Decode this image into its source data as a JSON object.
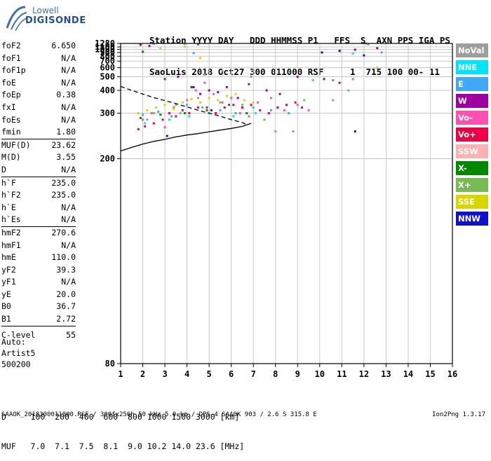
{
  "logo": {
    "line1": "Lowell",
    "line2": "DIGISONDE"
  },
  "header": {
    "line1": "Station YYYY DAY   DDD HHMMSS P1   FFS  S  AXN PPS IGA PS",
    "line2": "SaoLuis 2018 Oct27 300 011000 RSF     1  715 100 00- 11"
  },
  "params": [
    {
      "label": "foF2",
      "value": "6.650"
    },
    {
      "label": "foF1",
      "value": "N/A"
    },
    {
      "label": "foF1p",
      "value": "N/A"
    },
    {
      "label": "foE",
      "value": "N/A"
    },
    {
      "label": "foEp",
      "value": "0.38"
    },
    {
      "label": "fxI",
      "value": "N/A"
    },
    {
      "label": "foEs",
      "value": "N/A"
    },
    {
      "label": "fmin",
      "value": "1.80"
    },
    {
      "label": "MUF(D)",
      "value": "23.62"
    },
    {
      "label": "M(D)",
      "value": "3.55"
    },
    {
      "label": "D",
      "value": "N/A"
    },
    {
      "label": "h`F",
      "value": "235.0"
    },
    {
      "label": "h`F2",
      "value": "235.0"
    },
    {
      "label": "h`E",
      "value": "N/A"
    },
    {
      "label": "h`Es",
      "value": "N/A"
    },
    {
      "label": "hmF2",
      "value": "270.6"
    },
    {
      "label": "hmF1",
      "value": "N/A"
    },
    {
      "label": "hmE",
      "value": "110.0"
    },
    {
      "label": "yF2",
      "value": "39.3"
    },
    {
      "label": "yF1",
      "value": "N/A"
    },
    {
      "label": "yE",
      "value": "20.0"
    },
    {
      "label": "B0",
      "value": "36.7"
    },
    {
      "label": "B1",
      "value": "2.72"
    },
    {
      "label": "C-level",
      "value": "55"
    }
  ],
  "auto": {
    "line1": "Auto:",
    "line2": "Artist5",
    "line3": "500200"
  },
  "legend": [
    {
      "label": "NoVal",
      "color": "#9e9e9e"
    },
    {
      "label": "NNE",
      "color": "#00e5ff"
    },
    {
      "label": "E",
      "color": "#3fa9f5"
    },
    {
      "label": "W",
      "color": "#a000a0"
    },
    {
      "label": "Vo-",
      "color": "#ff4fb0"
    },
    {
      "label": "Vo+",
      "color": "#ee0044"
    },
    {
      "label": "SSW",
      "color": "#ffb0b0"
    },
    {
      "label": "X-",
      "color": "#008800"
    },
    {
      "label": "X+",
      "color": "#77bb55"
    },
    {
      "label": "SSE",
      "color": "#d6d600"
    },
    {
      "label": "NNW",
      "color": "#1010cc"
    }
  ],
  "muf_table": {
    "d_line": "D     100  200  400  600  800 1000 1500 3000 [km]",
    "muf_line": "MUF   7.0  7.1  7.5  8.1  9.0 10.2 14.0 23.6 [MHz]"
  },
  "footer": {
    "text": "SAAOK_2018300011000.RSF / 300fx256h 50 kHz 5.0 km / DPS-4 SAA0K 903 / 2.6 S 315.8 E",
    "version": "Ion2Png 1.3.17"
  },
  "chart_data": {
    "type": "scatter",
    "title": "",
    "xlabel": "",
    "ylabel": "",
    "xlim": [
      1,
      16
    ],
    "ylim": [
      80,
      1280
    ],
    "yscale": "reciprocal",
    "x_ticks": [
      1,
      2,
      3,
      4,
      5,
      6,
      7,
      8,
      9,
      10,
      11,
      12,
      13,
      14,
      15,
      16
    ],
    "y_ticks": [
      80,
      200,
      300,
      400,
      500,
      600,
      700,
      800,
      900,
      1000,
      1100,
      1280
    ],
    "grid": true,
    "series": [
      {
        "color": "#ee0044",
        "points": [
          [
            1.8,
            255
          ],
          [
            2.1,
            262
          ],
          [
            2.5,
            270
          ],
          [
            2.9,
            280
          ],
          [
            3.2,
            300
          ],
          [
            3.5,
            290
          ],
          [
            3.8,
            310
          ],
          [
            4.1,
            300
          ],
          [
            4.5,
            320
          ],
          [
            4.9,
            310
          ],
          [
            5.3,
            300
          ],
          [
            5.7,
            320
          ],
          [
            6.1,
            330
          ],
          [
            6.5,
            320
          ],
          [
            6.9,
            330
          ],
          [
            7.3,
            310
          ],
          [
            7.7,
            300
          ],
          [
            8.1,
            320
          ],
          [
            8.5,
            330
          ],
          [
            8.9,
            340
          ],
          [
            9.2,
            320
          ]
        ]
      },
      {
        "color": "#ff4fb0",
        "points": [
          [
            2.0,
            280
          ],
          [
            2.4,
            300
          ],
          [
            3.0,
            260
          ],
          [
            3.4,
            320
          ],
          [
            4.0,
            350
          ],
          [
            4.4,
            400
          ],
          [
            4.8,
            450
          ],
          [
            5.2,
            380
          ],
          [
            5.6,
            340
          ],
          [
            6.0,
            360
          ],
          [
            6.4,
            300
          ],
          [
            6.8,
            290
          ],
          [
            7.2,
            340
          ],
          [
            7.8,
            360
          ],
          [
            8.4,
            310
          ],
          [
            9.0,
            330
          ],
          [
            9.5,
            310
          ],
          [
            10.6,
            470
          ],
          [
            11.5,
            480
          ]
        ]
      },
      {
        "color": "#a000a0",
        "points": [
          [
            1.9,
            1200
          ],
          [
            2.3,
            1150
          ],
          [
            3.0,
            480
          ],
          [
            3.6,
            500
          ],
          [
            4.2,
            420
          ],
          [
            4.6,
            380
          ],
          [
            5.0,
            400
          ],
          [
            5.4,
            390
          ],
          [
            5.8,
            420
          ],
          [
            6.3,
            360
          ],
          [
            6.8,
            440
          ],
          [
            7.6,
            400
          ],
          [
            8.2,
            380
          ],
          [
            9.0,
            500
          ],
          [
            10.2,
            480
          ],
          [
            10.9,
            450
          ],
          [
            11.6,
            990
          ],
          [
            12.6,
            1050
          ]
        ]
      },
      {
        "color": "#d6d600",
        "points": [
          [
            1.8,
            300
          ],
          [
            2.2,
            310
          ],
          [
            2.6,
            320
          ],
          [
            3.0,
            330
          ],
          [
            3.4,
            315
          ],
          [
            3.8,
            340
          ],
          [
            4.2,
            355
          ],
          [
            4.6,
            340
          ],
          [
            5.0,
            360
          ],
          [
            5.4,
            350
          ],
          [
            5.8,
            370
          ],
          [
            6.2,
            380
          ],
          [
            6.6,
            350
          ],
          [
            7.0,
            340
          ],
          [
            4.6,
            760
          ],
          [
            3.9,
            1120
          ],
          [
            2.8,
            1050
          ],
          [
            12.6,
            600
          ]
        ]
      },
      {
        "color": "#3fa9f5",
        "points": [
          [
            2.0,
            295
          ],
          [
            2.7,
            305
          ],
          [
            3.3,
            290
          ],
          [
            4.0,
            330
          ],
          [
            4.7,
            320
          ],
          [
            5.5,
            310
          ],
          [
            6.2,
            300
          ],
          [
            7.0,
            320
          ],
          [
            7.8,
            310
          ],
          [
            8.6,
            300
          ],
          [
            2.5,
            1250
          ],
          [
            3.9,
            1270
          ],
          [
            4.3,
            880
          ],
          [
            12.8,
            900
          ]
        ]
      },
      {
        "color": "#008800",
        "points": [
          [
            1.9,
            285
          ],
          [
            2.8,
            295
          ],
          [
            3.9,
            300
          ],
          [
            4.9,
            320
          ],
          [
            5.9,
            330
          ],
          [
            6.7,
            300
          ],
          [
            2.0,
            920
          ],
          [
            4.5,
            1230
          ]
        ]
      },
      {
        "color": "#1010cc",
        "points": [
          [
            3.1,
            240
          ],
          [
            4.3,
            420
          ],
          [
            5.1,
            310
          ],
          [
            10.9,
            950
          ],
          [
            10.1,
            900
          ],
          [
            12.0,
            820
          ],
          [
            11.6,
            250
          ]
        ]
      },
      {
        "color": "#9e9e9e",
        "points": [
          [
            2.2,
            280
          ],
          [
            3.7,
            300
          ],
          [
            4.8,
            520
          ],
          [
            5.6,
            560
          ],
          [
            6.9,
            500
          ],
          [
            8.8,
            250
          ],
          [
            11.3,
            400
          ],
          [
            12.1,
            1270
          ],
          [
            12.2,
            1230
          ]
        ]
      },
      {
        "color": "#77bb55",
        "points": [
          [
            2.5,
            300
          ],
          [
            3.5,
            330
          ],
          [
            4.5,
            360
          ],
          [
            5.5,
            340
          ],
          [
            6.5,
            330
          ],
          [
            7.5,
            280
          ],
          [
            8.0,
            250
          ],
          [
            9.3,
            350
          ],
          [
            10.6,
            350
          ]
        ]
      },
      {
        "color": "#00e5ff",
        "points": [
          [
            2.1,
            270
          ],
          [
            3.2,
            280
          ],
          [
            4.1,
            290
          ],
          [
            5.0,
            300
          ],
          [
            6.1,
            290
          ],
          [
            7.1,
            300
          ],
          [
            9.7,
            470
          ],
          [
            11.5,
            870
          ]
        ]
      }
    ],
    "curves": [
      {
        "style": "solid",
        "points": [
          [
            1.0,
            212
          ],
          [
            1.5,
            218
          ],
          [
            2,
            224
          ],
          [
            2.5,
            229
          ],
          [
            3,
            233
          ],
          [
            3.5,
            238
          ],
          [
            4,
            242
          ],
          [
            4.5,
            245
          ],
          [
            5,
            249
          ],
          [
            5.5,
            253
          ],
          [
            6,
            257
          ],
          [
            6.5,
            262
          ],
          [
            6.9,
            270
          ]
        ]
      },
      {
        "style": "dashed",
        "points": [
          [
            1.0,
            425
          ],
          [
            1.5,
            400
          ],
          [
            2,
            380
          ],
          [
            2.5,
            362
          ],
          [
            3,
            348
          ],
          [
            3.5,
            335
          ],
          [
            4,
            322
          ],
          [
            4.5,
            310
          ],
          [
            5,
            300
          ],
          [
            5.5,
            290
          ],
          [
            6,
            280
          ],
          [
            6.5,
            272
          ],
          [
            6.65,
            268
          ]
        ]
      }
    ]
  }
}
